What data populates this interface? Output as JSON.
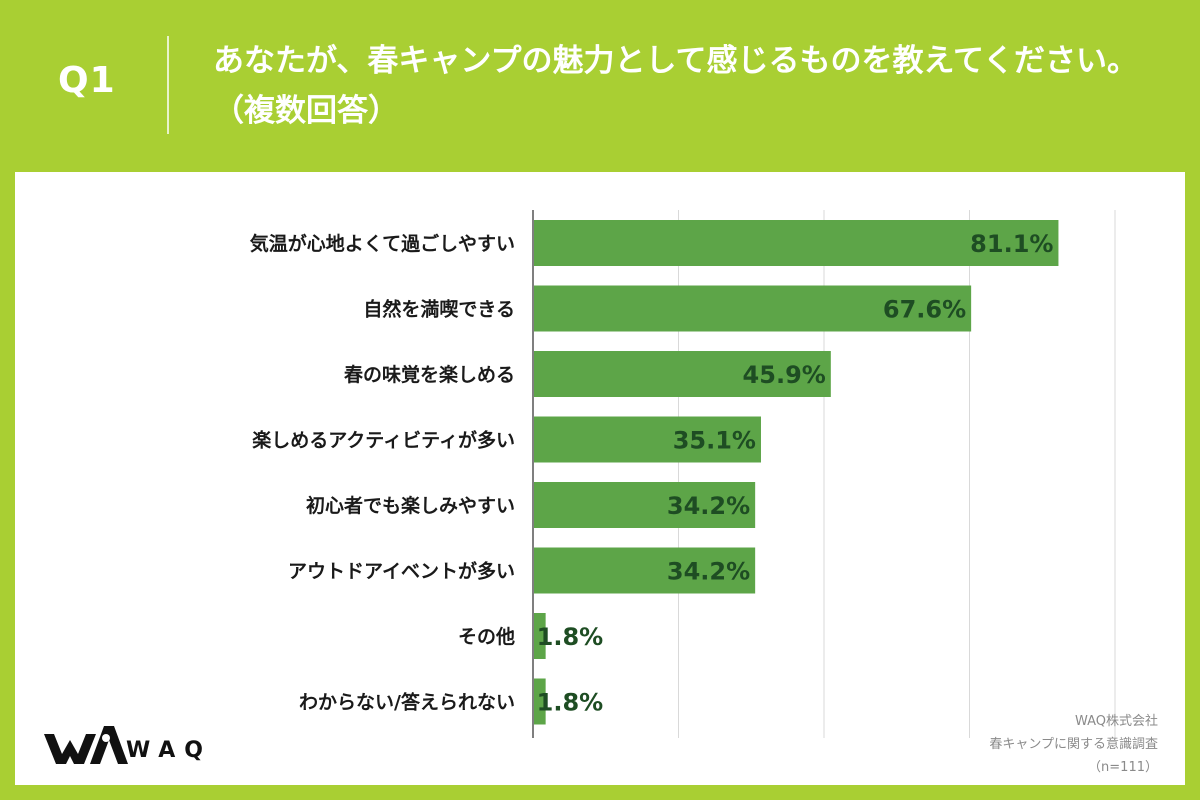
{
  "header": {
    "q_label": "Q1",
    "question": "あなたが、春キャンプの魅力として感じるものを教えてください。（複数回答）"
  },
  "colors": {
    "background": "#a9cf33",
    "bar": "#5da548",
    "value_text": "#1e4d23",
    "grid": "#d9d9d9"
  },
  "chart_data": {
    "type": "bar",
    "orientation": "horizontal",
    "categories": [
      "気温が心地よくて過ごしやすい",
      "自然を満喫できる",
      "春の味覚を楽しめる",
      "楽しめるアクティビティが多い",
      "初心者でも楽しみやすい",
      "アウトドアイベントが多い",
      "その他",
      "わからない/答えられない"
    ],
    "values": [
      81.1,
      67.6,
      45.9,
      35.1,
      34.2,
      34.2,
      1.8,
      1.8
    ],
    "value_labels": [
      "81.1%",
      "67.6%",
      "45.9%",
      "35.1%",
      "34.2%",
      "34.2%",
      "1.8%",
      "1.8%"
    ],
    "xlim": [
      0,
      90
    ],
    "grid_step": 22.5,
    "grid": true,
    "legend": "none"
  },
  "logo": {
    "text": "WAQ"
  },
  "credit": {
    "line1": "WAQ株式会社",
    "line2": "春キャンプに関する意識調査",
    "line3": "（n=111）"
  }
}
